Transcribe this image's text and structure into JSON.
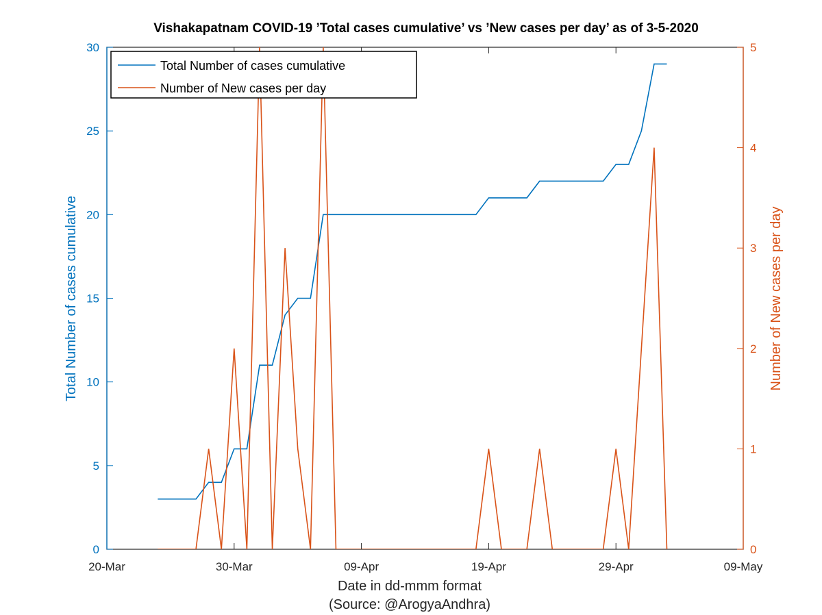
{
  "chart_data": {
    "type": "line",
    "title": "Vishakapatnam COVID-19 ’Total cases cumulative’ vs ’New cases per day’ as of 3-5-2020",
    "xlabel": "Date in dd-mmm format",
    "xlabel2": "(Source: @ArogyaAndhra)",
    "x_ticks": [
      "20-Mar",
      "30-Mar",
      "09-Apr",
      "19-Apr",
      "29-Apr",
      "09-May"
    ],
    "xlim": [
      "2020-03-20",
      "2020-05-09"
    ],
    "y_left": {
      "label": "Total Number of cases cumulative",
      "lim": [
        0,
        30
      ],
      "ticks": [
        "0",
        "5",
        "10",
        "15",
        "20",
        "25",
        "30"
      ],
      "color": "#0072BD"
    },
    "y_right": {
      "label": "Number of New cases per day",
      "lim": [
        0,
        5
      ],
      "ticks": [
        "0",
        "1",
        "2",
        "3",
        "4",
        "5"
      ],
      "color": "#D95319"
    },
    "legend": {
      "placement": "top-left"
    },
    "series": [
      {
        "name": "Total Number of cases cumulative",
        "axis": "left",
        "color": "#0072BD",
        "points": [
          [
            "2020-03-24",
            3
          ],
          [
            "2020-03-25",
            3
          ],
          [
            "2020-03-26",
            3
          ],
          [
            "2020-03-27",
            3
          ],
          [
            "2020-03-28",
            4
          ],
          [
            "2020-03-29",
            4
          ],
          [
            "2020-03-30",
            6
          ],
          [
            "2020-03-31",
            6
          ],
          [
            "2020-04-01",
            11
          ],
          [
            "2020-04-02",
            11
          ],
          [
            "2020-04-03",
            14
          ],
          [
            "2020-04-04",
            15
          ],
          [
            "2020-04-05",
            15
          ],
          [
            "2020-04-06",
            20
          ],
          [
            "2020-04-07",
            20
          ],
          [
            "2020-04-08",
            20
          ],
          [
            "2020-04-09",
            20
          ],
          [
            "2020-04-10",
            20
          ],
          [
            "2020-04-11",
            20
          ],
          [
            "2020-04-12",
            20
          ],
          [
            "2020-04-13",
            20
          ],
          [
            "2020-04-14",
            20
          ],
          [
            "2020-04-15",
            20
          ],
          [
            "2020-04-16",
            20
          ],
          [
            "2020-04-17",
            20
          ],
          [
            "2020-04-18",
            20
          ],
          [
            "2020-04-19",
            21
          ],
          [
            "2020-04-20",
            21
          ],
          [
            "2020-04-21",
            21
          ],
          [
            "2020-04-22",
            21
          ],
          [
            "2020-04-23",
            22
          ],
          [
            "2020-04-24",
            22
          ],
          [
            "2020-04-25",
            22
          ],
          [
            "2020-04-26",
            22
          ],
          [
            "2020-04-27",
            22
          ],
          [
            "2020-04-28",
            22
          ],
          [
            "2020-04-29",
            23
          ],
          [
            "2020-04-30",
            23
          ],
          [
            "2020-05-01",
            25
          ],
          [
            "2020-05-02",
            29
          ],
          [
            "2020-05-03",
            29
          ]
        ]
      },
      {
        "name": "Number of New cases per day",
        "axis": "right",
        "color": "#D95319",
        "points": [
          [
            "2020-03-24",
            0
          ],
          [
            "2020-03-25",
            0
          ],
          [
            "2020-03-26",
            0
          ],
          [
            "2020-03-27",
            0
          ],
          [
            "2020-03-28",
            1
          ],
          [
            "2020-03-29",
            0
          ],
          [
            "2020-03-30",
            2
          ],
          [
            "2020-03-31",
            0
          ],
          [
            "2020-04-01",
            5
          ],
          [
            "2020-04-02",
            0
          ],
          [
            "2020-04-03",
            3
          ],
          [
            "2020-04-04",
            1
          ],
          [
            "2020-04-05",
            0
          ],
          [
            "2020-04-06",
            5
          ],
          [
            "2020-04-07",
            0
          ],
          [
            "2020-04-08",
            0
          ],
          [
            "2020-04-09",
            0
          ],
          [
            "2020-04-10",
            0
          ],
          [
            "2020-04-11",
            0
          ],
          [
            "2020-04-12",
            0
          ],
          [
            "2020-04-13",
            0
          ],
          [
            "2020-04-14",
            0
          ],
          [
            "2020-04-15",
            0
          ],
          [
            "2020-04-16",
            0
          ],
          [
            "2020-04-17",
            0
          ],
          [
            "2020-04-18",
            0
          ],
          [
            "2020-04-19",
            1
          ],
          [
            "2020-04-20",
            0
          ],
          [
            "2020-04-21",
            0
          ],
          [
            "2020-04-22",
            0
          ],
          [
            "2020-04-23",
            1
          ],
          [
            "2020-04-24",
            0
          ],
          [
            "2020-04-25",
            0
          ],
          [
            "2020-04-26",
            0
          ],
          [
            "2020-04-27",
            0
          ],
          [
            "2020-04-28",
            0
          ],
          [
            "2020-04-29",
            1
          ],
          [
            "2020-04-30",
            0
          ],
          [
            "2020-05-01",
            2
          ],
          [
            "2020-05-02",
            4
          ],
          [
            "2020-05-03",
            0
          ]
        ]
      }
    ]
  }
}
